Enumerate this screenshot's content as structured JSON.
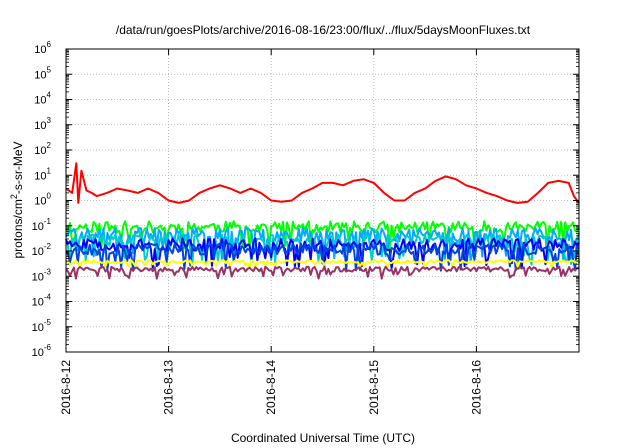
{
  "chart_data": {
    "type": "line",
    "title": "/data/run/goesPlots/archive/2016-08-16/23:00/flux/../flux/5daysMoonFluxes.txt",
    "xlabel": "Coordinated Universal Time (UTC)",
    "ylabel_parts": [
      "protons/cm",
      "2",
      "-s-sr-MeV"
    ],
    "x_range_days": [
      0,
      5
    ],
    "x_ticks": [
      {
        "day": 0,
        "label": "2016-8-12"
      },
      {
        "day": 1,
        "label": "2016-8-13"
      },
      {
        "day": 2,
        "label": "2016-8-14"
      },
      {
        "day": 3,
        "label": "2016-8-15"
      },
      {
        "day": 4,
        "label": "2016-8-16"
      }
    ],
    "y_scale": "log",
    "y_exp_range": [
      -6,
      6
    ],
    "y_ticks": [
      {
        "base": "10",
        "exp": "-6"
      },
      {
        "base": "10",
        "exp": "-5"
      },
      {
        "base": "10",
        "exp": "-4"
      },
      {
        "base": "10",
        "exp": "-3"
      },
      {
        "base": "10",
        "exp": "-2"
      },
      {
        "base": "10",
        "exp": "-1"
      },
      {
        "base": "10",
        "exp": "0"
      },
      {
        "base": "10",
        "exp": "1"
      },
      {
        "base": "10",
        "exp": "2"
      },
      {
        "base": "10",
        "exp": "3"
      },
      {
        "base": "10",
        "exp": "4"
      },
      {
        "base": "10",
        "exp": "5"
      },
      {
        "base": "10",
        "exp": "6"
      }
    ],
    "grid": true,
    "series": [
      {
        "color": "#ff0000",
        "x": [
          0,
          0.06,
          0.1,
          0.12,
          0.15,
          0.2,
          0.25,
          0.3,
          0.4,
          0.5,
          0.6,
          0.7,
          0.8,
          0.9,
          1.0,
          1.1,
          1.2,
          1.3,
          1.4,
          1.5,
          1.6,
          1.7,
          1.8,
          1.9,
          2.0,
          2.1,
          2.2,
          2.3,
          2.4,
          2.5,
          2.6,
          2.7,
          2.8,
          2.9,
          3.0,
          3.1,
          3.2,
          3.3,
          3.4,
          3.5,
          3.6,
          3.7,
          3.8,
          3.9,
          4.0,
          4.1,
          4.2,
          4.3,
          4.4,
          4.5,
          4.6,
          4.7,
          4.8,
          4.9,
          4.95,
          5.0
        ],
        "y": [
          3.0,
          2.0,
          30,
          0.8,
          15,
          2.5,
          2.0,
          1.5,
          2.0,
          3.0,
          2.5,
          2.0,
          3.0,
          2.0,
          1.0,
          0.8,
          1.0,
          2.0,
          3.0,
          4.0,
          3.0,
          2.0,
          3.0,
          2.0,
          1.0,
          0.9,
          1.0,
          2.0,
          3.0,
          5.0,
          5.0,
          4.0,
          6.0,
          7.0,
          5.0,
          2.0,
          1.0,
          1.0,
          2.0,
          3.0,
          6.0,
          9.0,
          7.0,
          4.0,
          3.0,
          2.0,
          1.5,
          1.0,
          0.8,
          0.9,
          2.0,
          5.0,
          6.0,
          5.0,
          1.5,
          0.8
        ]
      },
      {
        "color": "#00ff00",
        "level": 0.09,
        "spread": 0.45,
        "seed": 11
      },
      {
        "color": "#00aaff",
        "level": 0.045,
        "spread": 0.55,
        "seed": 23
      },
      {
        "color": "#00cccc",
        "level": 0.025,
        "spread": 0.5,
        "seed": 37
      },
      {
        "color": "#0000ff",
        "level": 0.018,
        "spread": 0.5,
        "seed": 51
      },
      {
        "color": "#0044dd",
        "level": 0.012,
        "spread": 0.45,
        "seed": 67
      },
      {
        "color": "#ffff00",
        "level": 0.0038,
        "spread": 0.12,
        "seed": 79
      },
      {
        "color": "#993366",
        "level": 0.0019,
        "spread": 0.2,
        "seed": 91
      }
    ]
  }
}
